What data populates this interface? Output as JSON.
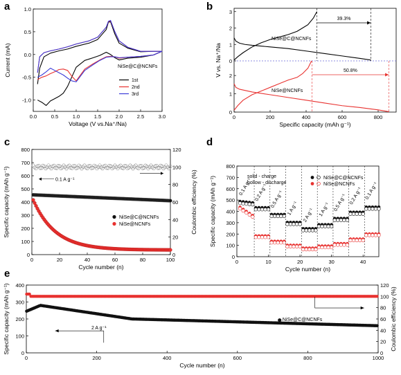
{
  "panel_letters": [
    "a",
    "b",
    "c",
    "d",
    "e"
  ],
  "chart_data": [
    {
      "panel": "a",
      "type": "line",
      "xlabel": "Voltage (V vs.Na⁺/Na)",
      "ylabel": "Current (mA)",
      "xlim": [
        0,
        3.0
      ],
      "ylim": [
        -1.25,
        1.0
      ],
      "xticks": [
        "0.0",
        "0.5",
        "1.0",
        "1.5",
        "2.0",
        "2.5",
        "3.0"
      ],
      "xtick_values": [
        0,
        0.5,
        1.0,
        1.5,
        2.0,
        2.5,
        3.0
      ],
      "yticks": [
        "-1.0",
        "-0.5",
        "0.0",
        "0.5",
        "1.0"
      ],
      "ytick_values": [
        -1.0,
        -0.5,
        0.0,
        0.5,
        1.0
      ],
      "label": "NiSe@C@NCNFs",
      "legend_position": "lower-right",
      "series": [
        {
          "name": "1st",
          "color": "#000000",
          "x": [
            0.1,
            0.2,
            0.3,
            0.4,
            0.5,
            0.6,
            0.7,
            0.8,
            1.0,
            1.2,
            1.4,
            1.55,
            1.7,
            1.8,
            1.9,
            2.0,
            2.2,
            2.5,
            2.8,
            3.0,
            2.8,
            2.5,
            2.2,
            2.0,
            1.9,
            1.8,
            1.75,
            1.7,
            1.5,
            1.3,
            1.0,
            0.8,
            0.6,
            0.4,
            0.25,
            0.15,
            0.1
          ],
          "y": [
            -1.0,
            -1.05,
            -1.12,
            -1.02,
            -0.97,
            -0.92,
            -0.85,
            -0.7,
            -0.28,
            -0.13,
            -0.07,
            -0.02,
            0.05,
            0.0,
            -0.07,
            -0.12,
            -0.08,
            -0.06,
            -0.01,
            0.07,
            0.07,
            0.06,
            0.14,
            0.25,
            0.45,
            0.72,
            0.71,
            0.55,
            0.33,
            0.25,
            0.18,
            0.12,
            0.08,
            0.03,
            -0.05,
            -0.3,
            -0.65
          ]
        },
        {
          "name": "2nd",
          "color": "#e8312f",
          "x": [
            0.1,
            0.2,
            0.3,
            0.4,
            0.5,
            0.6,
            0.7,
            0.8,
            0.9,
            1.0,
            1.2,
            1.4,
            1.55,
            1.7,
            1.8,
            1.9,
            2.0,
            2.2,
            2.5,
            2.8,
            3.0,
            2.8,
            2.5,
            2.2,
            2.0,
            1.9,
            1.8,
            1.75,
            1.7,
            1.5,
            1.3,
            1.0,
            0.8,
            0.6,
            0.4,
            0.25,
            0.15,
            0.1
          ],
          "y": [
            -0.55,
            -0.5,
            -0.47,
            -0.42,
            -0.38,
            -0.33,
            -0.32,
            -0.35,
            -0.48,
            -0.58,
            -0.32,
            -0.2,
            -0.12,
            -0.05,
            -0.04,
            -0.05,
            -0.08,
            -0.06,
            -0.04,
            -0.01,
            0.07,
            0.07,
            0.07,
            0.16,
            0.3,
            0.5,
            0.74,
            0.72,
            0.6,
            0.38,
            0.3,
            0.23,
            0.17,
            0.12,
            0.08,
            0.04,
            -0.05,
            -0.4
          ]
        },
        {
          "name": "3rd",
          "color": "#3a3ad8",
          "x": [
            0.1,
            0.2,
            0.3,
            0.4,
            0.5,
            0.6,
            0.7,
            0.8,
            0.9,
            1.0,
            1.2,
            1.4,
            1.55,
            1.7,
            1.8,
            1.9,
            2.0,
            2.2,
            2.5,
            2.8,
            3.0,
            2.8,
            2.5,
            2.2,
            2.0,
            1.9,
            1.8,
            1.75,
            1.7,
            1.5,
            1.3,
            1.0,
            0.8,
            0.6,
            0.4,
            0.25,
            0.15,
            0.1
          ],
          "y": [
            -0.5,
            -0.45,
            -0.38,
            -0.3,
            -0.35,
            -0.4,
            -0.45,
            -0.52,
            -0.58,
            -0.6,
            -0.35,
            -0.22,
            -0.13,
            -0.06,
            -0.05,
            -0.05,
            -0.07,
            -0.06,
            -0.04,
            -0.01,
            0.07,
            0.07,
            0.07,
            0.16,
            0.3,
            0.5,
            0.75,
            0.73,
            0.6,
            0.38,
            0.3,
            0.23,
            0.17,
            0.12,
            0.08,
            0.04,
            -0.05,
            -0.4
          ]
        }
      ]
    },
    {
      "panel": "b",
      "type": "line",
      "xlabel": "Specific capacity (mAh g⁻¹)",
      "ylabel": "V vs. Na⁺/Na",
      "xlim": [
        0,
        900
      ],
      "ylim": [
        0,
        3.2
      ],
      "xticks": [
        "0",
        "200",
        "400",
        "600",
        "800"
      ],
      "xtick_values": [
        0,
        200,
        400,
        600,
        800
      ],
      "ytick_labels_upper": [
        "0",
        "1",
        "2",
        "3"
      ],
      "ytick_labels_lower": [
        "0",
        "1",
        "2"
      ],
      "labels": [
        "NiSe@C@NCNFs",
        "NiSe@NCNFs"
      ],
      "annotations": [
        "39.3%",
        "50.8%"
      ],
      "series": [
        {
          "name": "NiSe@C@NCNFs discharge",
          "color": "#000000",
          "x": [
            0,
            10,
            30,
            60,
            100,
            200,
            300,
            400,
            500,
            600,
            700,
            760
          ],
          "y": [
            1.4,
            1.2,
            1.08,
            1.0,
            0.95,
            0.85,
            0.75,
            0.6,
            0.45,
            0.3,
            0.15,
            0.05
          ]
        },
        {
          "name": "NiSe@C@NCNFs charge",
          "color": "#000000",
          "x": [
            0,
            20,
            50,
            100,
            150,
            200,
            250,
            300,
            350,
            380,
            410,
            440,
            460
          ],
          "y": [
            0.05,
            0.25,
            0.5,
            0.85,
            1.1,
            1.3,
            1.45,
            1.6,
            1.8,
            2.0,
            2.2,
            2.6,
            3.0
          ]
        },
        {
          "name": "NiSe@NCNFs discharge",
          "color": "#e8312f",
          "x": [
            0,
            10,
            30,
            100,
            200,
            300,
            400,
            500,
            600,
            700,
            800,
            860
          ],
          "y": [
            1.55,
            1.35,
            1.25,
            1.1,
            0.95,
            0.8,
            0.65,
            0.5,
            0.35,
            0.25,
            0.12,
            0.02
          ]
        },
        {
          "name": "NiSe@NCNFs charge",
          "color": "#e8312f",
          "x": [
            0,
            20,
            50,
            100,
            150,
            200,
            250,
            300,
            350,
            380,
            410,
            430
          ],
          "y": [
            0.1,
            0.35,
            0.65,
            0.95,
            1.15,
            1.35,
            1.55,
            1.75,
            1.9,
            2.1,
            2.4,
            2.8
          ]
        }
      ]
    },
    {
      "panel": "c",
      "type": "scatter",
      "xlabel": "Cycle number (n)",
      "ylabel": "Specific capacity (mAh g⁻¹)",
      "ylabel_right": "Coulombic efficiency (%)",
      "xlim": [
        0,
        100
      ],
      "ylim": [
        0,
        800
      ],
      "ylim_right": [
        0,
        120
      ],
      "xticks": [
        "0",
        "20",
        "40",
        "60",
        "80",
        "100"
      ],
      "xtick_values": [
        0,
        20,
        40,
        60,
        80,
        100
      ],
      "yticks": [
        "0",
        "100",
        "200",
        "300",
        "400",
        "500",
        "600",
        "700",
        "800"
      ],
      "ytick_values": [
        0,
        100,
        200,
        300,
        400,
        500,
        600,
        700,
        800
      ],
      "yticks_right": [
        "0",
        "20",
        "40",
        "60",
        "80",
        "100",
        "120"
      ],
      "ytick_values_right": [
        0,
        20,
        40,
        60,
        80,
        100,
        120
      ],
      "annotation": "0.1 A g⁻¹",
      "legend": [
        "NiSe@C@NCNFs",
        "NiSe@NCNFs"
      ],
      "legend_position": "center-right",
      "series": [
        {
          "name": "NiSe@C@NCNFs",
          "color": "#000000",
          "x_start": 1,
          "x_step": 1,
          "count": 100,
          "y_start": 455,
          "y_end": 410,
          "shape": "decline-slow"
        },
        {
          "name": "NiSe@NCNFs",
          "color": "#e8312f",
          "x_start": 1,
          "x_step": 1,
          "count": 100,
          "y_start": 440,
          "y_end": 35,
          "shape": "decay"
        },
        {
          "name": "Coulombic efficiency",
          "color": "#777777",
          "axis": "right",
          "x_start": 1,
          "x_step": 1,
          "count": 100,
          "y_value": 100
        }
      ]
    },
    {
      "panel": "d",
      "type": "scatter",
      "xlabel": "Cycle number (n)",
      "ylabel": "Specific capacity (mAh g⁻¹)",
      "xlim": [
        0,
        45
      ],
      "ylim": [
        0,
        800
      ],
      "xticks": [
        "0",
        "10",
        "20",
        "30",
        "40"
      ],
      "xtick_values": [
        0,
        10,
        20,
        30,
        40
      ],
      "yticks": [
        "0",
        "100",
        "200",
        "300",
        "400",
        "500",
        "600",
        "700",
        "800"
      ],
      "ytick_values": [
        0,
        100,
        200,
        300,
        400,
        500,
        600,
        700,
        800
      ],
      "notes": [
        "solid - charge",
        "hollow - discharge"
      ],
      "legend": [
        "NiSe@C@NCNFs",
        "NiSe@NCNFs"
      ],
      "rate_labels": [
        "0.1 A g⁻¹",
        "0.2 A g⁻¹",
        "0.5 A g⁻¹",
        "1 A g⁻¹",
        "2 A g⁻¹",
        "1 A g⁻¹",
        "0.5 A g⁻¹",
        "0.2 A g⁻¹",
        "0.1 A g⁻¹"
      ],
      "segment_boundaries": [
        5,
        10,
        15,
        20,
        25,
        30,
        35,
        40
      ],
      "segments_NiSe_C_NCNFs": [
        470,
        425,
        365,
        295,
        240,
        275,
        330,
        385,
        430
      ],
      "segments_NiSe_NCNFs": [
        390,
        178,
        130,
        95,
        70,
        88,
        110,
        150,
        195
      ]
    },
    {
      "panel": "e",
      "type": "scatter",
      "xlabel": "Cycle number (n)",
      "ylabel": "Specific capacity (mAh g⁻¹)",
      "ylabel_right": "Coulombic efficiency (%)",
      "xlim": [
        0,
        1000
      ],
      "ylim": [
        0,
        400
      ],
      "ylim_right": [
        0,
        120
      ],
      "xticks": [
        "0",
        "200",
        "400",
        "600",
        "800",
        "1000"
      ],
      "xtick_values": [
        0,
        200,
        400,
        600,
        800,
        1000
      ],
      "yticks": [
        "0",
        "100",
        "200",
        "300",
        "400"
      ],
      "ytick_values": [
        0,
        100,
        200,
        300,
        400
      ],
      "yticks_right": [
        "0",
        "20",
        "40",
        "60",
        "80",
        "100",
        "120"
      ],
      "ytick_values_right": [
        0,
        20,
        40,
        60,
        80,
        100,
        120
      ],
      "annotation": "2 A g⁻¹",
      "legend": [
        "NiSe@C@NCNFs"
      ],
      "series": [
        {
          "name": "NiSe@C@NCNFs capacity",
          "color": "#000000",
          "peak_cycle": 40,
          "start": 245,
          "peak": 280,
          "mid_cycle": 300,
          "mid": 200,
          "end": 160
        },
        {
          "name": "Coulombic efficiency",
          "color": "#e8312f",
          "axis": "right",
          "value": 100
        }
      ]
    }
  ]
}
